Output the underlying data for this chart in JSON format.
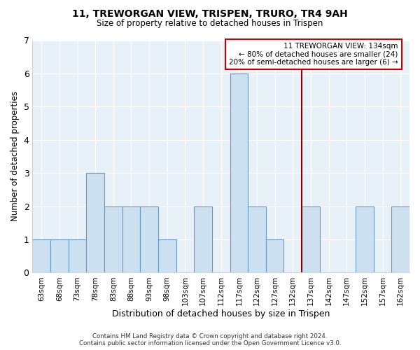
{
  "title": "11, TREWORGAN VIEW, TRISPEN, TRURO, TR4 9AH",
  "subtitle": "Size of property relative to detached houses in Trispen",
  "xlabel": "Distribution of detached houses by size in Trispen",
  "ylabel": "Number of detached properties",
  "bar_labels": [
    "63sqm",
    "68sqm",
    "73sqm",
    "78sqm",
    "83sqm",
    "88sqm",
    "93sqm",
    "98sqm",
    "103sqm",
    "107sqm",
    "112sqm",
    "117sqm",
    "122sqm",
    "127sqm",
    "132sqm",
    "137sqm",
    "142sqm",
    "147sqm",
    "152sqm",
    "157sqm",
    "162sqm"
  ],
  "bar_values": [
    1,
    1,
    1,
    3,
    2,
    2,
    2,
    1,
    0,
    2,
    0,
    6,
    2,
    1,
    0,
    2,
    0,
    0,
    2,
    0,
    2
  ],
  "bar_color": "#cce0f0",
  "bar_edge_color": "#6699cc",
  "ylim": [
    0,
    7
  ],
  "yticks": [
    0,
    1,
    2,
    3,
    4,
    5,
    6,
    7
  ],
  "ref_line_color": "#8b0000",
  "legend_title": "11 TREWORGAN VIEW: 134sqm",
  "legend_line1": "← 80% of detached houses are smaller (24)",
  "legend_line2": "20% of semi-detached houses are larger (6) →",
  "legend_box_color": "#cc0000",
  "footer_line1": "Contains HM Land Registry data © Crown copyright and database right 2024.",
  "footer_line2": "Contains public sector information licensed under the Open Government Licence v3.0.",
  "background_color": "#e8f0f8"
}
